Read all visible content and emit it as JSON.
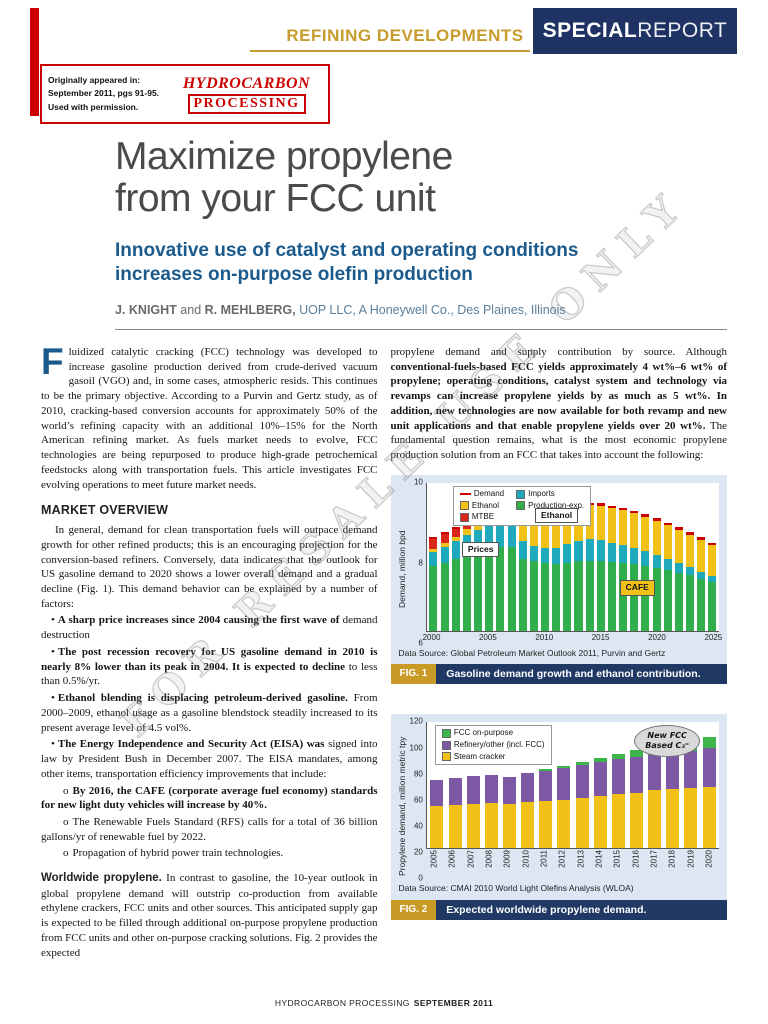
{
  "header": {
    "section_label": "REFINING DEVELOPMENTS",
    "special_bold": "SPECIAL",
    "special_light": "REPORT"
  },
  "reprint": {
    "line1": "Originally appeared in:",
    "line2": "September 2011, pgs 91-95.",
    "line3": "Used with permission.",
    "logo1": "HYDROCARBON",
    "logo2": "PROCESSING"
  },
  "article": {
    "title1": "Maximize propylene",
    "title2": "from your FCC unit",
    "subtitle1": "Innovative use of catalyst and operating conditions",
    "subtitle2": "increases on-purpose olefin production",
    "authors": {
      "name1": "J. KNIGHT",
      "sep": " and ",
      "name2": "R. MEHLBERG, ",
      "affiliation": "UOP LLC, A Honeywell Co., Des Plaines, Illinois"
    }
  },
  "body": {
    "intro_dropcap": "F",
    "intro_text": "luidized catalytic cracking (FCC) technology was developed to increase gasoline production derived from crude-derived vacuum gasoil (VGO) and, in some cases, atmospheric resids. This continues to be the primary objective. According to a Purvin and Gertz study, as of 2010, cracking-based conversion accounts for approximately 50% of the world’s refining capacity with an additional 10%–15% for the North American refining market. As fuels market needs to evolve, FCC technologies are being repurposed to produce high-grade petrochemical feedstocks along with transportation fuels. This article investigates FCC evolving operations to meet future market needs.",
    "market_heading": "MARKET OVERVIEW",
    "market_para": "In general, demand for clean transportation fuels will outpace demand growth for other refined products; this is an encouraging projection for the conversion-based refiners. Conversely, data indicates that the outlook for US gasoline demand to 2020 shows a lower overall demand and a gradual decline (Fig. 1). This demand behavior can be explained by a number of factors:",
    "bullets": [
      {
        "marker": "•",
        "bold": "A sharp price increases since 2004 causing the first wave of",
        "rest": " demand destruction"
      },
      {
        "marker": "•",
        "bold": "The post recession recovery for US gasoline demand in 2010 is nearly 8% lower than its peak in 2004. It is expected to decline",
        "rest": " to less than 0.5%/yr."
      },
      {
        "marker": "•",
        "bold": "Ethanol blending is displacing petroleum-derived gasoline.",
        "rest": " From 2000–2009, ethanol usage as a gasoline blendstock steadily increased to its present average level of 4.5 vol%."
      },
      {
        "marker": "•",
        "bold": "The Energy Independence and Security Act (EISA) was",
        "rest": " signed into law by President Bush in December 2007. The EISA mandates, among other items, transportation efficiency improvements that include:"
      }
    ],
    "subbullets": [
      {
        "marker": "o",
        "bold": "By 2016, the CAFE (corporate average fuel economy) standards for new light duty vehicles will increase by 40%.",
        "rest": ""
      },
      {
        "marker": "o",
        "bold": "",
        "rest": "The Renewable Fuels Standard (RFS) calls for a total of 36 billion gallons/yr of renewable fuel by 2022."
      },
      {
        "marker": "o",
        "bold": "",
        "rest": "Propagation of hybrid power train technologies."
      }
    ],
    "worldwide_lead": "Worldwide propylene.",
    "worldwide_text": " In contrast to gasoline, the 10-year outlook in global propylene demand will outstrip co-production from available ethylene crackers, FCC units and other sources. This anticipated supply gap is expected to be filled through additional on-purpose propylene production from FCC units and other on-purpose cracking solutions. Fig. 2 provides the expected",
    "right_lead": "propylene demand and supply contribution by source. Although ",
    "right_bold": "conventional-fuels-based FCC yields approximately 4 wt%–6 wt% of propylene; operating conditions, catalyst system and technology via revamps can increase propylene yields by as much as 5 wt%. In addition, new technologies are now available for both revamp and new unit applications and that enable propylene yields over 20 wt%.",
    "right_rest": " The fundamental question remains, what is the most economic propylene production solution from an FCC that takes into account the following:"
  },
  "figures": {
    "fig1": {
      "label": "FIG. 1",
      "caption": "Gasoline demand growth and ethanol contribution.",
      "source": "Data Source: Global Petroleum Market Outlook 2011, Purvin and Gertz"
    },
    "fig2": {
      "label": "FIG. 2",
      "caption": "Expected worldwide propylene demand.",
      "source": "Data Source: CMAI 2010 World Light Olefins Analysis (WLOA)"
    }
  },
  "footer": {
    "brand": "HYDROCARBON PROCESSING",
    "issue": "SEPTEMBER 2011"
  },
  "watermark": {
    "text": "FOR RESALE USE ONLY"
  },
  "chart_data": [
    {
      "type": "bar",
      "title": "Gasoline demand growth and ethanol contribution.",
      "xlabel": "",
      "ylabel": "Demand, million bpd",
      "ylim": [
        6,
        10
      ],
      "yticks": [
        6,
        8,
        10
      ],
      "grid": false,
      "legend_position": "top-left",
      "x": [
        2000,
        2001,
        2002,
        2003,
        2004,
        2005,
        2006,
        2007,
        2008,
        2009,
        2010,
        2011,
        2012,
        2013,
        2014,
        2015,
        2016,
        2017,
        2018,
        2019,
        2020,
        2021,
        2022,
        2023,
        2024,
        2025
      ],
      "xticks": [
        2000,
        2005,
        2010,
        2015,
        2020,
        2025
      ],
      "series": [
        {
          "name": "Production-exp.",
          "color": "#2fae4b",
          "values": [
            7.75,
            7.84,
            7.94,
            8.04,
            8.15,
            8.23,
            8.27,
            8.26,
            7.94,
            7.88,
            7.83,
            7.8,
            7.84,
            7.88,
            7.9,
            7.9,
            7.86,
            7.84,
            7.8,
            7.75,
            7.7,
            7.65,
            7.57,
            7.5,
            7.41,
            7.32
          ]
        },
        {
          "name": "Imports",
          "color": "#1fa9bd",
          "values": [
            0.38,
            0.43,
            0.48,
            0.54,
            0.58,
            0.62,
            0.6,
            0.58,
            0.48,
            0.4,
            0.42,
            0.45,
            0.5,
            0.55,
            0.58,
            0.55,
            0.52,
            0.48,
            0.44,
            0.4,
            0.35,
            0.3,
            0.26,
            0.22,
            0.18,
            0.15
          ]
        },
        {
          "name": "Ethanol",
          "color": "#f2c118",
          "values": [
            0.09,
            0.1,
            0.13,
            0.17,
            0.22,
            0.27,
            0.35,
            0.44,
            0.58,
            0.68,
            0.8,
            0.85,
            0.88,
            0.9,
            0.92,
            0.93,
            0.94,
            0.94,
            0.94,
            0.93,
            0.92,
            0.91,
            0.9,
            0.88,
            0.87,
            0.85
          ]
        },
        {
          "name": "MTBE",
          "color": "#d9261c",
          "values": [
            0.25,
            0.24,
            0.2,
            0.15,
            0.1,
            0.04,
            0,
            0,
            0,
            0,
            0,
            0,
            0,
            0,
            0,
            0,
            0,
            0,
            0,
            0,
            0,
            0,
            0,
            0,
            0,
            0
          ]
        }
      ],
      "line_series": {
        "name": "Demand",
        "color": "#cc0000",
        "values": [
          8.47,
          8.61,
          8.75,
          8.9,
          9.05,
          9.16,
          9.22,
          9.28,
          9.0,
          8.96,
          9.05,
          9.1,
          9.22,
          9.33,
          9.4,
          9.38,
          9.32,
          9.26,
          9.18,
          9.08,
          8.97,
          8.86,
          8.73,
          8.6,
          8.46,
          8.32
        ]
      },
      "line_color": "#cc0000",
      "legend_columns": [
        [
          {
            "name": "Demand",
            "color": "#cc0000",
            "swatch": "line"
          },
          {
            "name": "Ethanol",
            "color": "#f2c118",
            "swatch": "box"
          },
          {
            "name": "MTBE",
            "color": "#d9261c",
            "swatch": "box"
          }
        ],
        [
          {
            "name": "Imports",
            "color": "#1fa9bd",
            "swatch": "box"
          },
          {
            "name": "Production-exp.",
            "color": "#2fae4b",
            "swatch": "box"
          }
        ]
      ],
      "annotations": [
        {
          "text": "Prices",
          "x": 12,
          "y": 40,
          "style": "plain"
        },
        {
          "text": "Ethanol",
          "x": 37,
          "y": 17,
          "style": "plain"
        },
        {
          "text": "CAFE",
          "x": 66,
          "y": 66,
          "style": "gold"
        }
      ]
    },
    {
      "type": "bar",
      "title": "Expected worldwide propylene demand.",
      "xlabel": "",
      "ylabel": "Propylene demand, million metric tpy",
      "ylim": [
        0,
        120
      ],
      "yticks": [
        0,
        20,
        40,
        60,
        80,
        100,
        120
      ],
      "grid": false,
      "legend_position": "top-left",
      "rotate_xticks": true,
      "x": [
        2005,
        2006,
        2007,
        2008,
        2009,
        2010,
        2011,
        2012,
        2013,
        2014,
        2015,
        2016,
        2017,
        2018,
        2019,
        2020
      ],
      "series": [
        {
          "name": "Steam cracker",
          "color": "#f2c118",
          "values": [
            40,
            41,
            42,
            43,
            42,
            44,
            45,
            46,
            48,
            50,
            52,
            53,
            55,
            56,
            57,
            58
          ]
        },
        {
          "name": "Refinery/other (incl. FCC)",
          "color": "#7d58a5",
          "values": [
            25,
            26,
            27,
            27,
            26,
            28,
            29,
            30,
            31,
            32,
            33,
            34,
            34,
            35,
            36,
            37
          ]
        },
        {
          "name": "FCC on-purpose",
          "color": "#3cb54a",
          "values": [
            0,
            0,
            0,
            0,
            0,
            0,
            1,
            2,
            3,
            4,
            5,
            7,
            8,
            9,
            10,
            11
          ]
        }
      ],
      "legend_columns": [
        [
          {
            "name": "FCC on-purpose",
            "color": "#3cb54a",
            "swatch": "box"
          },
          {
            "name": "Refinery/other (incl. FCC)",
            "color": "#7d58a5",
            "swatch": "box"
          },
          {
            "name": "Steam cracker",
            "color": "#f2c118",
            "swatch": "box"
          }
        ]
      ],
      "annotations": [
        {
          "lines": [
            "New FCC",
            "Based C₃⁼"
          ],
          "x": 71,
          "y": 2,
          "style": "ellipse"
        }
      ]
    }
  ]
}
